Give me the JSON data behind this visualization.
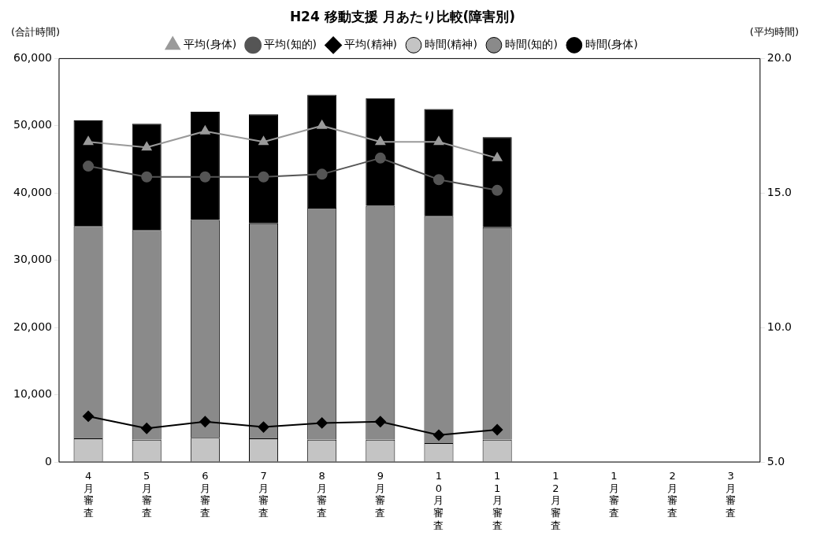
{
  "chart_data": {
    "type": "bar",
    "title": "H24 移動支援 月あたり比較(障害別)",
    "ylabel": "(合計時間)",
    "y2label": "(平均時間)",
    "categories": [
      "4月審査",
      "5月審査",
      "6月審査",
      "7月審査",
      "8月審査",
      "9月審査",
      "10月審査",
      "11月審査",
      "12月審査",
      "1月審査",
      "2月審査",
      "3月審査"
    ],
    "stacked": true,
    "legend": "top",
    "grid": false,
    "ylim": [
      0,
      60000
    ],
    "yticks": [
      {
        "value": 0,
        "label": "0"
      },
      {
        "value": 10000,
        "label": "10,000"
      },
      {
        "value": 20000,
        "label": "20,000"
      },
      {
        "value": 30000,
        "label": "30,000"
      },
      {
        "value": 40000,
        "label": "40,000"
      },
      {
        "value": 50000,
        "label": "50,000"
      },
      {
        "value": 60000,
        "label": "60,000"
      }
    ],
    "y2lim": [
      5,
      20
    ],
    "y2ticks": [
      {
        "value": 5,
        "label": "5.0"
      },
      {
        "value": 10,
        "label": "10.0"
      },
      {
        "value": 15,
        "label": "15.0"
      },
      {
        "value": 20,
        "label": "20.0"
      }
    ],
    "series": [
      {
        "name": "時間(精神)",
        "color": "#c4c4c4",
        "values": [
          3500,
          3300,
          3600,
          3500,
          3300,
          3300,
          2800,
          3300,
          null,
          null,
          null,
          null
        ]
      },
      {
        "name": "時間(知的)",
        "color": "#8a8a8a",
        "values": [
          31600,
          31200,
          32400,
          32000,
          34500,
          34800,
          33800,
          31600,
          null,
          null,
          null,
          null
        ]
      },
      {
        "name": "時間(身体)",
        "color": "#000000",
        "values": [
          15700,
          15800,
          16100,
          16200,
          16800,
          16000,
          15900,
          13400,
          null,
          null,
          null,
          null
        ]
      },
      {
        "name": "平均(身体)",
        "type": "line",
        "axis": "y2",
        "marker": "triangle",
        "color": "#9a9a9a",
        "values": [
          16.9,
          16.7,
          17.3,
          16.9,
          17.5,
          16.9,
          16.9,
          16.3,
          null,
          null,
          null,
          null
        ]
      },
      {
        "name": "平均(知的)",
        "type": "line",
        "axis": "y2",
        "marker": "circle",
        "color": "#555555",
        "values": [
          16.0,
          15.6,
          15.6,
          15.6,
          15.7,
          16.3,
          15.5,
          15.1,
          null,
          null,
          null,
          null
        ]
      },
      {
        "name": "平均(精神)",
        "type": "line",
        "axis": "y2",
        "marker": "diamond",
        "color": "#000000",
        "values": [
          6.7,
          6.25,
          6.5,
          6.3,
          6.45,
          6.5,
          6.0,
          6.2,
          null,
          null,
          null,
          null
        ]
      }
    ]
  }
}
